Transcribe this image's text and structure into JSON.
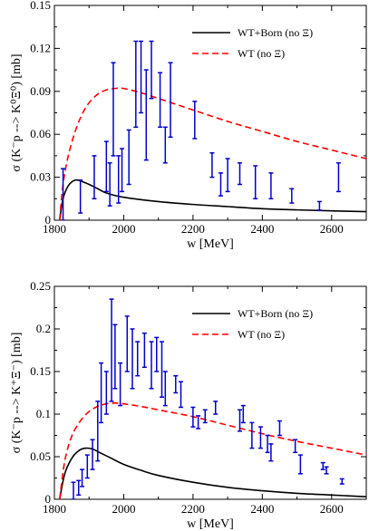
{
  "chart_data": [
    {
      "type": "line",
      "title": "",
      "xlabel": "w [MeV]",
      "ylabel": "σ (K⁻p --> K⁰Ξ⁰) [mb]",
      "xlim": [
        1800,
        2700
      ],
      "ylim": [
        0,
        0.15
      ],
      "xticks": [
        "1800",
        "2000",
        "2200",
        "2400",
        "2600"
      ],
      "yticks": [
        "0",
        "0.03",
        "0.06",
        "0.09",
        "0.12",
        "0.15"
      ],
      "legend_position": "top-right",
      "series": [
        {
          "name": "WT+Born (no Ξ)",
          "color": "#000000",
          "style": "solid",
          "x": [
            1815,
            1825,
            1840,
            1860,
            1880,
            1900,
            1925,
            1950,
            2000,
            2100,
            2200,
            2300,
            2400,
            2500,
            2600,
            2700
          ],
          "values": [
            0,
            0.015,
            0.024,
            0.028,
            0.027,
            0.025,
            0.022,
            0.019,
            0.016,
            0.013,
            0.011,
            0.0095,
            0.008,
            0.0072,
            0.0065,
            0.006
          ]
        },
        {
          "name": "WT (no Ξ)",
          "color": "#ff0000",
          "style": "dashed",
          "x": [
            1815,
            1825,
            1840,
            1860,
            1880,
            1900,
            1925,
            1950,
            1975,
            2000,
            2050,
            2100,
            2150,
            2200,
            2300,
            2400,
            2500,
            2600,
            2700
          ],
          "values": [
            0,
            0.025,
            0.045,
            0.062,
            0.074,
            0.082,
            0.088,
            0.091,
            0.092,
            0.092,
            0.089,
            0.085,
            0.081,
            0.077,
            0.069,
            0.062,
            0.055,
            0.049,
            0.043
          ]
        },
        {
          "name": "",
          "type": "errorbar",
          "color": "#0000cc",
          "points": [
            {
              "x": 1825,
              "low": 0.0,
              "high": 0.036
            },
            {
              "x": 1875,
              "low": 0.005,
              "high": 0.028
            },
            {
              "x": 1915,
              "low": 0.015,
              "high": 0.045
            },
            {
              "x": 1950,
              "low": 0.02,
              "high": 0.055
            },
            {
              "x": 1960,
              "low": 0.01,
              "high": 0.04
            },
            {
              "x": 1970,
              "low": 0.045,
              "high": 0.11
            },
            {
              "x": 1985,
              "low": 0.012,
              "high": 0.045
            },
            {
              "x": 1995,
              "low": 0.02,
              "high": 0.05
            },
            {
              "x": 2015,
              "low": 0.025,
              "high": 0.063
            },
            {
              "x": 2035,
              "low": 0.065,
              "high": 0.125
            },
            {
              "x": 2050,
              "low": 0.075,
              "high": 0.125
            },
            {
              "x": 2065,
              "low": 0.042,
              "high": 0.105
            },
            {
              "x": 2080,
              "low": 0.085,
              "high": 0.125
            },
            {
              "x": 2105,
              "low": 0.065,
              "high": 0.103
            },
            {
              "x": 2120,
              "low": 0.04,
              "high": 0.065
            },
            {
              "x": 2135,
              "low": 0.058,
              "high": 0.11
            },
            {
              "x": 2205,
              "low": 0.057,
              "high": 0.083
            },
            {
              "x": 2255,
              "low": 0.03,
              "high": 0.047
            },
            {
              "x": 2280,
              "low": 0.017,
              "high": 0.033
            },
            {
              "x": 2300,
              "low": 0.02,
              "high": 0.043
            },
            {
              "x": 2335,
              "low": 0.025,
              "high": 0.04
            },
            {
              "x": 2380,
              "low": 0.015,
              "high": 0.038
            },
            {
              "x": 2425,
              "low": 0.015,
              "high": 0.033
            },
            {
              "x": 2485,
              "low": 0.012,
              "high": 0.022
            },
            {
              "x": 2565,
              "low": 0.007,
              "high": 0.013
            },
            {
              "x": 2620,
              "low": 0.02,
              "high": 0.04
            }
          ]
        }
      ]
    },
    {
      "type": "line",
      "title": "",
      "xlabel": "w [MeV]",
      "ylabel": "σ (K⁻p --> K⁺Ξ⁻) [mb]",
      "xlim": [
        1800,
        2700
      ],
      "ylim": [
        0,
        0.25
      ],
      "xticks": [
        "1800",
        "2000",
        "2200",
        "2400",
        "2600"
      ],
      "yticks": [
        "0",
        "0.05",
        "0.1",
        "0.15",
        "0.2",
        "0.25"
      ],
      "legend_position": "top-right",
      "series": [
        {
          "name": "WT+Born (no Ξ)",
          "color": "#000000",
          "style": "solid",
          "x": [
            1815,
            1830,
            1850,
            1870,
            1890,
            1910,
            1930,
            1960,
            2000,
            2050,
            2100,
            2200,
            2300,
            2400,
            2500,
            2600,
            2700
          ],
          "values": [
            0,
            0.03,
            0.048,
            0.057,
            0.06,
            0.059,
            0.055,
            0.049,
            0.041,
            0.034,
            0.028,
            0.02,
            0.014,
            0.01,
            0.007,
            0.005,
            0.003
          ]
        },
        {
          "name": "WT (no Ξ)",
          "color": "#ff0000",
          "style": "dashed",
          "x": [
            1815,
            1830,
            1850,
            1875,
            1900,
            1925,
            1950,
            1975,
            2000,
            2050,
            2100,
            2200,
            2300,
            2400,
            2500,
            2600,
            2700
          ],
          "values": [
            0,
            0.045,
            0.074,
            0.092,
            0.103,
            0.109,
            0.112,
            0.113,
            0.112,
            0.109,
            0.105,
            0.097,
            0.087,
            0.077,
            0.068,
            0.06,
            0.052
          ]
        },
        {
          "name": "",
          "type": "errorbar",
          "color": "#0000cc",
          "points": [
            {
              "x": 1855,
              "low": 0.0,
              "high": 0.02
            },
            {
              "x": 1870,
              "low": 0.005,
              "high": 0.022
            },
            {
              "x": 1880,
              "low": 0.015,
              "high": 0.035
            },
            {
              "x": 1895,
              "low": 0.025,
              "high": 0.052
            },
            {
              "x": 1910,
              "low": 0.035,
              "high": 0.07
            },
            {
              "x": 1925,
              "low": 0.045,
              "high": 0.115
            },
            {
              "x": 1935,
              "low": 0.09,
              "high": 0.16
            },
            {
              "x": 1950,
              "low": 0.1,
              "high": 0.15
            },
            {
              "x": 1965,
              "low": 0.115,
              "high": 0.235
            },
            {
              "x": 1975,
              "low": 0.13,
              "high": 0.205
            },
            {
              "x": 1990,
              "low": 0.11,
              "high": 0.16
            },
            {
              "x": 2010,
              "low": 0.15,
              "high": 0.215
            },
            {
              "x": 2025,
              "low": 0.13,
              "high": 0.2
            },
            {
              "x": 2040,
              "low": 0.145,
              "high": 0.185
            },
            {
              "x": 2060,
              "low": 0.155,
              "high": 0.195
            },
            {
              "x": 2080,
              "low": 0.13,
              "high": 0.185
            },
            {
              "x": 2095,
              "low": 0.15,
              "high": 0.19
            },
            {
              "x": 2110,
              "low": 0.12,
              "high": 0.185
            },
            {
              "x": 2120,
              "low": 0.11,
              "high": 0.15
            },
            {
              "x": 2150,
              "low": 0.125,
              "high": 0.145
            },
            {
              "x": 2165,
              "low": 0.108,
              "high": 0.138
            },
            {
              "x": 2200,
              "low": 0.085,
              "high": 0.108
            },
            {
              "x": 2215,
              "low": 0.083,
              "high": 0.098
            },
            {
              "x": 2235,
              "low": 0.09,
              "high": 0.105
            },
            {
              "x": 2265,
              "low": 0.1,
              "high": 0.115
            },
            {
              "x": 2335,
              "low": 0.08,
              "high": 0.105
            },
            {
              "x": 2345,
              "low": 0.09,
              "high": 0.11
            },
            {
              "x": 2370,
              "low": 0.06,
              "high": 0.09
            },
            {
              "x": 2395,
              "low": 0.06,
              "high": 0.085
            },
            {
              "x": 2415,
              "low": 0.055,
              "high": 0.075
            },
            {
              "x": 2425,
              "low": 0.045,
              "high": 0.065
            },
            {
              "x": 2450,
              "low": 0.075,
              "high": 0.092
            },
            {
              "x": 2495,
              "low": 0.055,
              "high": 0.07
            },
            {
              "x": 2510,
              "low": 0.03,
              "high": 0.052
            },
            {
              "x": 2575,
              "low": 0.035,
              "high": 0.043
            },
            {
              "x": 2585,
              "low": 0.03,
              "high": 0.038
            },
            {
              "x": 2630,
              "low": 0.018,
              "high": 0.024
            }
          ]
        }
      ]
    }
  ]
}
